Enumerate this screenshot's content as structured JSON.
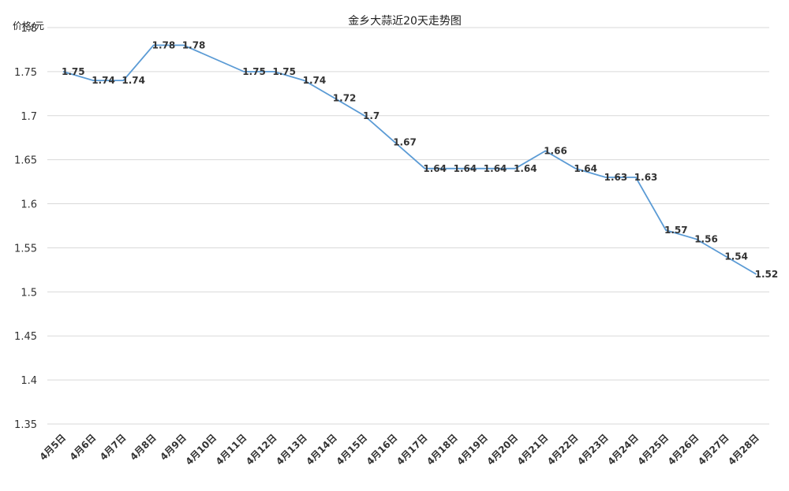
{
  "chart_data": {
    "type": "line",
    "title": "金乡大蒜近20天走势图",
    "ylabel": "价格/元",
    "xlabel": "",
    "ylim": [
      1.35,
      1.8
    ],
    "yticks": [
      "1.35",
      "1.4",
      "1.45",
      "1.5",
      "1.55",
      "1.6",
      "1.65",
      "1.7",
      "1.75",
      "1.8"
    ],
    "grid": true,
    "categories": [
      "4月5日",
      "4月6日",
      "4月7日",
      "4月8日",
      "4月9日",
      "4月10日",
      "4月11日",
      "4月12日",
      "4月13日",
      "4月14日",
      "4月15日",
      "4月16日",
      "4月17日",
      "4月18日",
      "4月19日",
      "4月20日",
      "4月21日",
      "4月22日",
      "4月23日",
      "4月24日",
      "4月25日",
      "4月26日",
      "4月27日",
      "4月28日"
    ],
    "values": [
      1.75,
      1.74,
      1.74,
      1.78,
      1.78,
      null,
      1.75,
      1.75,
      1.74,
      1.72,
      1.7,
      1.67,
      1.64,
      1.64,
      1.64,
      1.64,
      1.66,
      1.64,
      1.63,
      1.63,
      1.57,
      1.56,
      1.54,
      1.52
    ],
    "data_labels": [
      "1.75",
      "1.74",
      "1.74",
      "1.78",
      "1.78",
      "",
      "1.75",
      "1.75",
      "1.74",
      "1.72",
      "1.7",
      "1.67",
      "1.64",
      "1.64",
      "1.64",
      "1.64",
      "1.66",
      "1.64",
      "1.63",
      "1.63",
      "1.57",
      "1.56",
      "1.54",
      "1.52"
    ],
    "colors": {
      "line": "#5b9bd5",
      "grid": "#d9d9d9"
    }
  }
}
